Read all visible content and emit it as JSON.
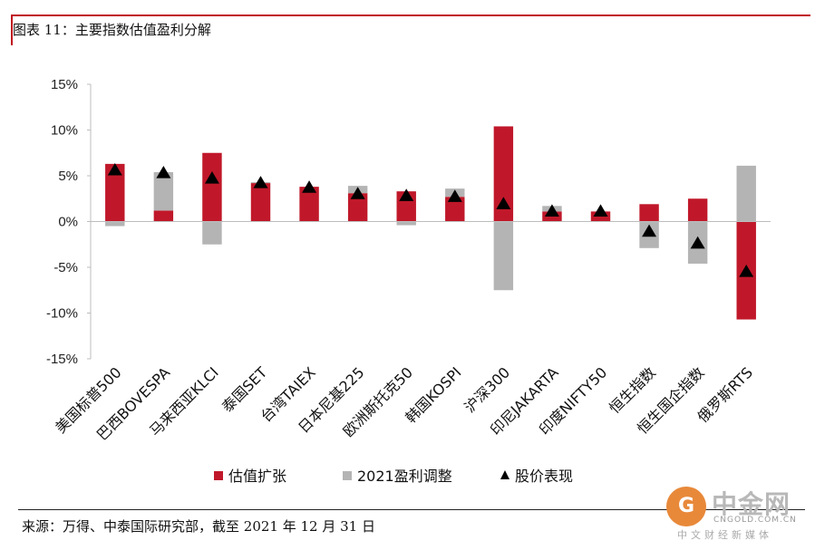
{
  "figure_title": "图表 11：主要指数估值盈利分解",
  "source": "来源：万得、中泰国际研究部，截至 2021 年 12 月 31 日",
  "watermark": {
    "name": "中金网",
    "url": "CNGOLD.COM.CN",
    "tag": "中文财经新媒体"
  },
  "colors": {
    "valuation": "#c0182a",
    "earnings": "#b4b4b4",
    "price": "#000000",
    "accent": "#c0101e"
  },
  "chart_data": {
    "type": "bar",
    "stacked": true,
    "categories": [
      "美国标普500",
      "巴西BOVESPA",
      "马来西亚KLCI",
      "泰国SET",
      "台湾TAIEX",
      "日本尼基225",
      "欧洲斯托克50",
      "韩国KOSPI",
      "沪深300",
      "印尼JAKARTA",
      "印度NIFTY50",
      "恒生指数",
      "恒生国企指数",
      "俄罗斯RTS"
    ],
    "series": [
      {
        "name": "估值扩张",
        "kind": "bar",
        "values": [
          6.3,
          1.2,
          7.5,
          4.2,
          3.8,
          3.1,
          3.3,
          2.7,
          10.4,
          1.1,
          1.1,
          1.9,
          2.5,
          -10.7
        ]
      },
      {
        "name": "2021盈利调整",
        "kind": "bar",
        "values": [
          -0.5,
          4.2,
          -2.5,
          0.1,
          0.0,
          0.8,
          -0.4,
          0.9,
          -7.5,
          0.6,
          0.0,
          -2.9,
          -4.6,
          6.1
        ]
      },
      {
        "name": "股价表现",
        "kind": "marker",
        "values": [
          5.6,
          5.3,
          4.7,
          4.2,
          3.7,
          3.0,
          2.8,
          2.7,
          1.9,
          1.1,
          1.1,
          -1.1,
          -2.4,
          -5.5
        ]
      }
    ],
    "y_ticks": [
      "15%",
      "10%",
      "5%",
      "0%",
      "-5%",
      "-10%",
      "-15%"
    ],
    "ylim": [
      -15,
      15
    ],
    "grid": false,
    "legend_position": "bottom"
  }
}
